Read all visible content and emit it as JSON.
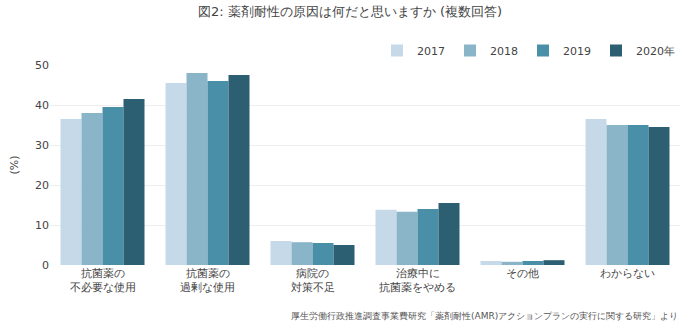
{
  "chart_data": {
    "type": "bar",
    "title": "図2: 薬剤耐性の原因は何だと思いますか (複数回答)",
    "categories": [
      "抗菌薬の\n不必要な使用",
      "抗菌薬の\n過剰な使用",
      "病院の\n対策不足",
      "治療中に\n抗菌薬をやめる",
      "その他",
      "わからない"
    ],
    "series": [
      {
        "name": "2017",
        "color": "#c5d9e8",
        "values": [
          36.5,
          45.5,
          6.0,
          13.8,
          1.0,
          36.5
        ]
      },
      {
        "name": "2018",
        "color": "#8ab4c8",
        "values": [
          38.0,
          48.0,
          5.7,
          13.3,
          0.8,
          35.0
        ]
      },
      {
        "name": "2019",
        "color": "#4a8fa8",
        "values": [
          39.5,
          46.0,
          5.5,
          14.0,
          1.0,
          35.0
        ]
      },
      {
        "name": "2020年",
        "color": "#2d5f72",
        "values": [
          41.5,
          47.5,
          5.0,
          15.5,
          1.2,
          34.5
        ]
      }
    ],
    "ylabel": "(%)",
    "ylim": [
      0,
      50
    ],
    "yticks": [
      0,
      10,
      20,
      30,
      40,
      50
    ],
    "grid": true,
    "legend": "upper right",
    "annotations": [
      "厚生労働行政推進調査事業費研究「薬剤耐性(AMR)アクションプランの実行に関する研究」より"
    ]
  }
}
